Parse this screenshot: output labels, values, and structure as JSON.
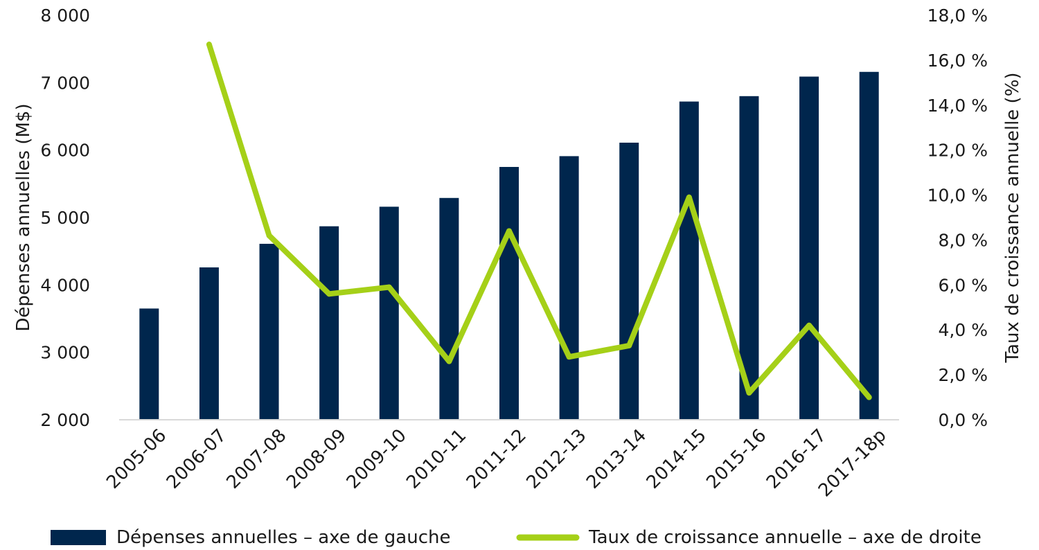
{
  "colors": {
    "bars": "#00264d",
    "line": "#a5d018",
    "axis": "#d9d9d9"
  },
  "chart_data": {
    "type": "bar",
    "categories": [
      "2005-06",
      "2006-07",
      "2007-08",
      "2008-09",
      "2009-10",
      "2010-11",
      "2011-12",
      "2012-13",
      "2013-14",
      "2014-15",
      "2015-16",
      "2016-17",
      "2017-18p"
    ],
    "series": [
      {
        "name": "Dépenses annuelles – axe de gauche",
        "type": "bar",
        "axis": "left",
        "values": [
          3650,
          4260,
          4610,
          4870,
          5160,
          5290,
          5750,
          5910,
          6110,
          6720,
          6800,
          7090,
          7160
        ]
      },
      {
        "name": "Taux de croissance annuelle – axe de droite",
        "type": "line",
        "axis": "right",
        "values": [
          null,
          16.7,
          8.2,
          5.6,
          5.9,
          2.6,
          8.4,
          2.8,
          3.3,
          9.9,
          1.2,
          4.2,
          1.0
        ]
      }
    ],
    "left_axis": {
      "label": "Dépenses annuelles (M$)",
      "range": [
        2000,
        8000
      ],
      "ticks": [
        "2 000",
        "3 000",
        "4 000",
        "5 000",
        "6 000",
        "7 000",
        "8 000"
      ]
    },
    "right_axis": {
      "label": "Taux de croissance annuelle (%)",
      "range": [
        0,
        18
      ],
      "ticks": [
        "0,0 %",
        "2,0 %",
        "4,0 %",
        "6,0 %",
        "8,0 %",
        "10,0 %",
        "12,0 %",
        "14,0 %",
        "16,0 %",
        "18,0 %"
      ]
    },
    "grid": false,
    "legend_position": "bottom"
  }
}
